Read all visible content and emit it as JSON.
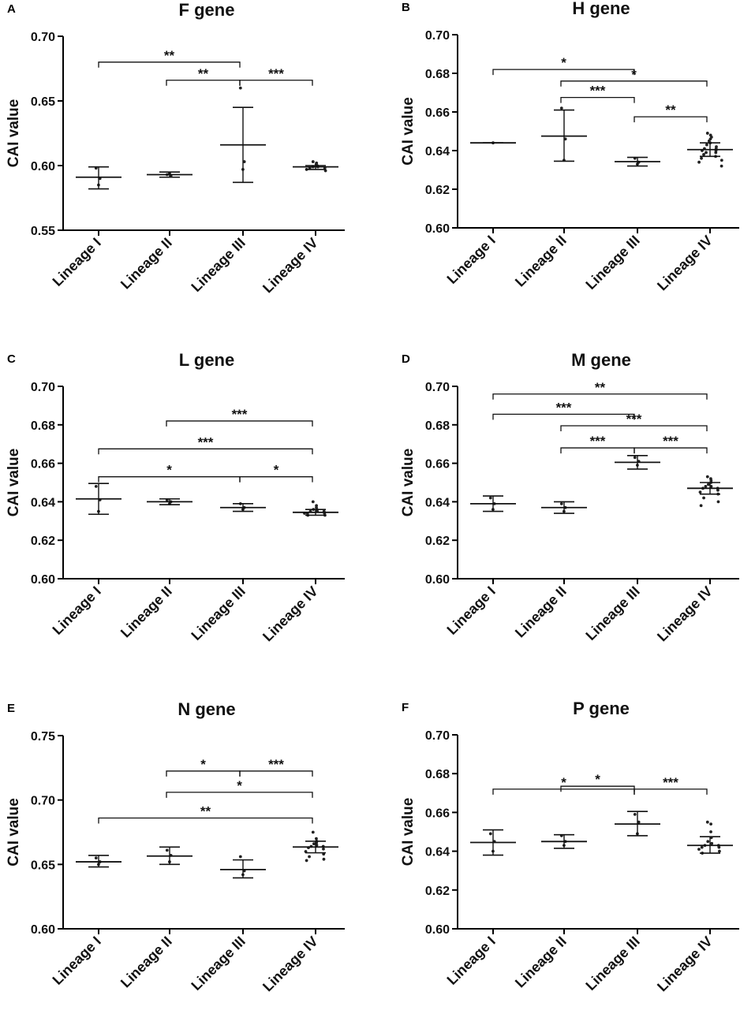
{
  "figure": {
    "y_axis_label": "CAI value"
  },
  "chart_data": [
    {
      "type": "scatter",
      "panel_letter": "A",
      "title": "F gene",
      "xlabel": "",
      "ylabel": "CAI value",
      "ylim": [
        0.55,
        0.7
      ],
      "yticks": [
        0.55,
        0.6,
        0.65,
        0.7
      ],
      "ytick_labels": [
        "0.55",
        "0.60",
        "0.65",
        "0.70"
      ],
      "categories": [
        "Lineage I",
        "Lineage II",
        "Lineage III",
        "Lineage IV"
      ],
      "groups": [
        {
          "mean": 0.591,
          "sd_low": 0.582,
          "sd_high": 0.599,
          "points": [
            0.598,
            0.59,
            0.585
          ]
        },
        {
          "mean": 0.593,
          "sd_low": 0.591,
          "sd_high": 0.595,
          "points": [
            0.593,
            0.592,
            0.594
          ]
        },
        {
          "mean": 0.616,
          "sd_low": 0.587,
          "sd_high": 0.645,
          "points": [
            0.66,
            0.603,
            0.597
          ]
        },
        {
          "mean": 0.599,
          "sd_low": 0.597,
          "sd_high": 0.6,
          "points": [
            0.603,
            0.602,
            0.601,
            0.6,
            0.599,
            0.599,
            0.598,
            0.598,
            0.597,
            0.596
          ]
        }
      ],
      "significance": [
        {
          "from": 0,
          "to": 2,
          "y": 0.68,
          "label": "**"
        },
        {
          "from": 1,
          "to": 2,
          "y": 0.666,
          "label": "**"
        },
        {
          "from": 2,
          "to": 3,
          "y": 0.666,
          "label": "***"
        }
      ]
    },
    {
      "type": "scatter",
      "panel_letter": "B",
      "title": "H gene",
      "xlabel": "",
      "ylabel": "CAI value",
      "ylim": [
        0.6,
        0.7
      ],
      "yticks": [
        0.6,
        0.62,
        0.64,
        0.66,
        0.68,
        0.7
      ],
      "ytick_labels": [
        "0.60",
        "0.62",
        "0.64",
        "0.66",
        "0.68",
        "0.70"
      ],
      "categories": [
        "Lineage I",
        "Lineage II",
        "Lineage III",
        "Lineage IV"
      ],
      "groups": [
        {
          "mean": 0.644,
          "sd_low": 0.644,
          "sd_high": 0.644,
          "points": [
            0.644
          ]
        },
        {
          "mean": 0.6475,
          "sd_low": 0.6345,
          "sd_high": 0.661,
          "points": [
            0.662,
            0.646,
            0.635
          ]
        },
        {
          "mean": 0.6343,
          "sd_low": 0.632,
          "sd_high": 0.6365,
          "points": [
            0.636,
            0.634,
            0.633
          ]
        },
        {
          "mean": 0.6405,
          "sd_low": 0.637,
          "sd_high": 0.644,
          "points": [
            0.649,
            0.648,
            0.647,
            0.646,
            0.645,
            0.644,
            0.643,
            0.642,
            0.641,
            0.641,
            0.64,
            0.64,
            0.639,
            0.639,
            0.638,
            0.637,
            0.636,
            0.635,
            0.634,
            0.632
          ]
        }
      ],
      "significance": [
        {
          "from": 0,
          "to": 2,
          "y": 0.682,
          "label": "*"
        },
        {
          "from": 1,
          "to": 3,
          "y": 0.676,
          "label": "*"
        },
        {
          "from": 1,
          "to": 2,
          "y": 0.6675,
          "label": "***"
        },
        {
          "from": 2,
          "to": 3,
          "y": 0.6575,
          "label": "**"
        }
      ]
    },
    {
      "type": "scatter",
      "panel_letter": "C",
      "title": "L gene",
      "xlabel": "",
      "ylabel": "CAI value",
      "ylim": [
        0.6,
        0.7
      ],
      "yticks": [
        0.6,
        0.62,
        0.64,
        0.66,
        0.68,
        0.7
      ],
      "ytick_labels": [
        "0.60",
        "0.62",
        "0.64",
        "0.66",
        "0.68",
        "0.70"
      ],
      "categories": [
        "Lineage I",
        "Lineage II",
        "Lineage III",
        "Lineage IV"
      ],
      "groups": [
        {
          "mean": 0.6415,
          "sd_low": 0.6335,
          "sd_high": 0.6495,
          "points": [
            0.648,
            0.641,
            0.635
          ]
        },
        {
          "mean": 0.64,
          "sd_low": 0.6385,
          "sd_high": 0.6415,
          "points": [
            0.641,
            0.64,
            0.639
          ]
        },
        {
          "mean": 0.637,
          "sd_low": 0.635,
          "sd_high": 0.639,
          "points": [
            0.639,
            0.637,
            0.636
          ]
        },
        {
          "mean": 0.6345,
          "sd_low": 0.633,
          "sd_high": 0.636,
          "points": [
            0.64,
            0.638,
            0.637,
            0.636,
            0.636,
            0.635,
            0.635,
            0.635,
            0.634,
            0.634,
            0.634,
            0.633,
            0.633
          ]
        }
      ],
      "significance": [
        {
          "from": 1,
          "to": 3,
          "y": 0.682,
          "label": "***"
        },
        {
          "from": 0,
          "to": 3,
          "y": 0.6675,
          "label": "***"
        },
        {
          "from": 0,
          "to": 2,
          "y": 0.653,
          "label": "*"
        },
        {
          "from": 2,
          "to": 3,
          "y": 0.653,
          "label": "*"
        }
      ]
    },
    {
      "type": "scatter",
      "panel_letter": "D",
      "title": "M gene",
      "xlabel": "",
      "ylabel": "CAI value",
      "ylim": [
        0.6,
        0.7
      ],
      "yticks": [
        0.6,
        0.62,
        0.64,
        0.66,
        0.68,
        0.7
      ],
      "ytick_labels": [
        "0.60",
        "0.62",
        "0.64",
        "0.66",
        "0.68",
        "0.70"
      ],
      "categories": [
        "Lineage I",
        "Lineage II",
        "Lineage III",
        "Lineage IV"
      ],
      "groups": [
        {
          "mean": 0.639,
          "sd_low": 0.635,
          "sd_high": 0.643,
          "points": [
            0.642,
            0.639,
            0.636
          ]
        },
        {
          "mean": 0.637,
          "sd_low": 0.634,
          "sd_high": 0.64,
          "points": [
            0.639,
            0.637,
            0.635
          ]
        },
        {
          "mean": 0.6605,
          "sd_low": 0.657,
          "sd_high": 0.664,
          "points": [
            0.663,
            0.661,
            0.659
          ]
        },
        {
          "mean": 0.647,
          "sd_low": 0.644,
          "sd_high": 0.65,
          "points": [
            0.653,
            0.652,
            0.651,
            0.65,
            0.649,
            0.648,
            0.648,
            0.647,
            0.647,
            0.646,
            0.645,
            0.644,
            0.642,
            0.64,
            0.638
          ]
        }
      ],
      "significance": [
        {
          "from": 0,
          "to": 3,
          "y": 0.696,
          "label": "**"
        },
        {
          "from": 0,
          "to": 2,
          "y": 0.6855,
          "label": "***"
        },
        {
          "from": 1,
          "to": 3,
          "y": 0.6795,
          "label": "***"
        },
        {
          "from": 1,
          "to": 2,
          "y": 0.668,
          "label": "***"
        },
        {
          "from": 2,
          "to": 3,
          "y": 0.668,
          "label": "***"
        }
      ]
    },
    {
      "type": "scatter",
      "panel_letter": "E",
      "title": "N gene",
      "xlabel": "",
      "ylabel": "CAI value",
      "ylim": [
        0.6,
        0.75
      ],
      "yticks": [
        0.6,
        0.65,
        0.7,
        0.75
      ],
      "ytick_labels": [
        "0.60",
        "0.65",
        "0.70",
        "0.75"
      ],
      "categories": [
        "Lineage I",
        "Lineage II",
        "Lineage III",
        "Lineage IV"
      ],
      "groups": [
        {
          "mean": 0.652,
          "sd_low": 0.648,
          "sd_high": 0.657,
          "points": [
            0.655,
            0.652,
            0.65
          ]
        },
        {
          "mean": 0.6565,
          "sd_low": 0.65,
          "sd_high": 0.6635,
          "points": [
            0.661,
            0.657,
            0.652
          ]
        },
        {
          "mean": 0.646,
          "sd_low": 0.6395,
          "sd_high": 0.6535,
          "points": [
            0.656,
            0.645,
            0.642
          ]
        },
        {
          "mean": 0.6635,
          "sd_low": 0.659,
          "sd_high": 0.668,
          "points": [
            0.675,
            0.67,
            0.668,
            0.667,
            0.666,
            0.665,
            0.664,
            0.664,
            0.663,
            0.662,
            0.66,
            0.658,
            0.656,
            0.654,
            0.653
          ]
        }
      ],
      "significance": [
        {
          "from": 1,
          "to": 2,
          "y": 0.7225,
          "label": "*"
        },
        {
          "from": 2,
          "to": 3,
          "y": 0.7225,
          "label": "***"
        },
        {
          "from": 1,
          "to": 3,
          "y": 0.706,
          "label": "*"
        },
        {
          "from": 0,
          "to": 3,
          "y": 0.686,
          "label": "**"
        }
      ]
    },
    {
      "type": "scatter",
      "panel_letter": "F",
      "title": "P gene",
      "xlabel": "",
      "ylabel": "CAI value",
      "ylim": [
        0.6,
        0.7
      ],
      "yticks": [
        0.6,
        0.62,
        0.64,
        0.66,
        0.68,
        0.7
      ],
      "ytick_labels": [
        "0.60",
        "0.62",
        "0.64",
        "0.66",
        "0.68",
        "0.70"
      ],
      "categories": [
        "Lineage I",
        "Lineage II",
        "Lineage III",
        "Lineage IV"
      ],
      "groups": [
        {
          "mean": 0.6445,
          "sd_low": 0.638,
          "sd_high": 0.651,
          "points": [
            0.649,
            0.645,
            0.64
          ]
        },
        {
          "mean": 0.645,
          "sd_low": 0.6415,
          "sd_high": 0.6485,
          "points": [
            0.648,
            0.645,
            0.643
          ]
        },
        {
          "mean": 0.654,
          "sd_low": 0.648,
          "sd_high": 0.6605,
          "points": [
            0.659,
            0.655,
            0.649
          ]
        },
        {
          "mean": 0.643,
          "sd_low": 0.639,
          "sd_high": 0.6475,
          "points": [
            0.655,
            0.654,
            0.65,
            0.647,
            0.645,
            0.644,
            0.643,
            0.643,
            0.642,
            0.642,
            0.641,
            0.64,
            0.639
          ]
        }
      ],
      "significance": [
        {
          "from": 1,
          "to": 2,
          "y": 0.6735,
          "label": "*"
        },
        {
          "from": 0,
          "to": 2,
          "y": 0.672,
          "label": "*"
        },
        {
          "from": 2,
          "to": 3,
          "y": 0.672,
          "label": "***"
        }
      ]
    }
  ]
}
